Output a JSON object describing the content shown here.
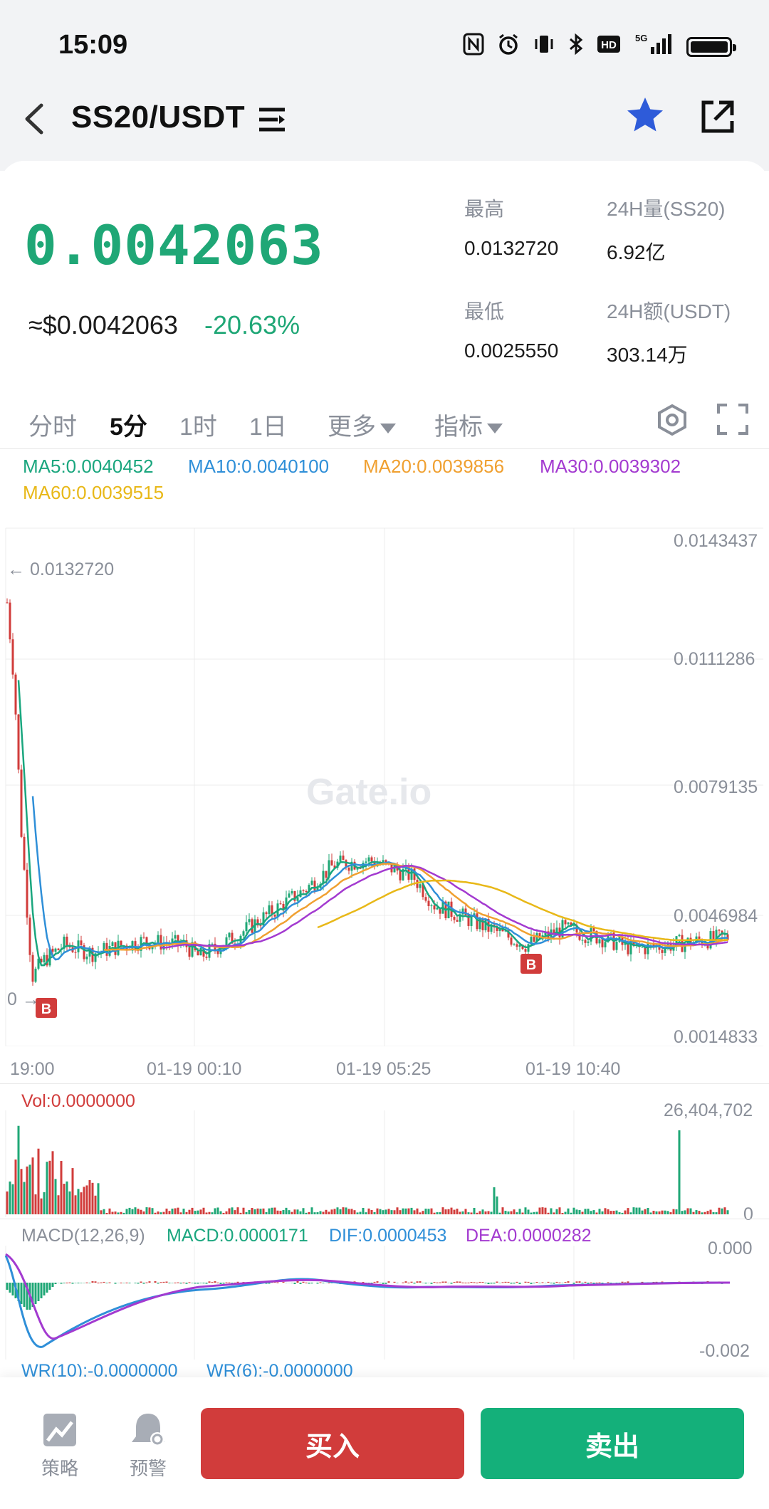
{
  "status_bar": {
    "time": "15:09",
    "icons": [
      "nfc-icon",
      "alarm-icon",
      "vibrate-icon",
      "bluetooth-icon",
      "hd-icon",
      "5g-signal-icon",
      "battery-icon"
    ],
    "hd": "HD",
    "net": "5G"
  },
  "header": {
    "pair": "SS20/USDT"
  },
  "price": {
    "last": "0.0042063",
    "usd": "≈$0.0042063",
    "change": "-20.63%"
  },
  "stats": {
    "high_label": "最高",
    "high_value": "0.0132720",
    "low_label": "最低",
    "low_value": "0.0025550",
    "vol_label": "24H量(SS20)",
    "vol_value": "6.92亿",
    "amt_label": "24H额(USDT)",
    "amt_value": "303.14万"
  },
  "tabs": {
    "items": [
      "分时",
      "5分",
      "1时",
      "1日",
      "更多",
      "指标"
    ],
    "active": "5分"
  },
  "ma": {
    "ma5": "MA5:0.0040452",
    "ma10": "MA10:0.0040100",
    "ma20": "MA20:0.0039856",
    "ma30": "MA30:0.0039302",
    "ma60": "MA60:0.0039515"
  },
  "colors": {
    "up": "#1fa776",
    "down": "#d13c3b",
    "ma5": "#1aa67e",
    "ma10": "#2f8fd8",
    "ma20": "#f0a030",
    "ma30": "#a33ad0",
    "ma60": "#e8b818"
  },
  "chart": {
    "y_labels": [
      "0.0143437",
      "0.0111286",
      "0.0079135",
      "0.0046984",
      "0.0014833"
    ],
    "high_marker": "← 0.0132720",
    "low_marker": "0 →",
    "x_labels": [
      "19:00",
      "01-19 00:10",
      "01-19 05:25",
      "01-19 10:40"
    ],
    "watermark": "Gate.io",
    "buy_marker": "B"
  },
  "volume": {
    "label": "Vol:0.0000000",
    "max": "26,404,702",
    "min": "0"
  },
  "macd": {
    "name": "MACD(12,26,9)",
    "macd": "MACD:0.0000171",
    "dif": "DIF:0.0000453",
    "dea": "DEA:0.0000282",
    "top": "0.000",
    "bottom": "-0.002"
  },
  "wr": {
    "label1": "WR(10):-0.0000000",
    "label2": "WR(6):-0.0000000"
  },
  "bottom": {
    "strategy": "策略",
    "alert": "预警",
    "buy": "买入",
    "sell": "卖出"
  },
  "chart_data": {
    "type": "line",
    "title": "SS20/USDT 5分",
    "x": [
      "19:00",
      "01-19 00:10",
      "01-19 05:25",
      "01-19 10:40"
    ],
    "ylim": [
      0.0014833,
      0.0143437
    ],
    "series": [
      {
        "name": "MA5",
        "last": 0.0040452
      },
      {
        "name": "MA10",
        "last": 0.00401
      },
      {
        "name": "MA20",
        "last": 0.0039856
      },
      {
        "name": "MA30",
        "last": 0.0039302
      },
      {
        "name": "MA60",
        "last": 0.0039515
      }
    ],
    "high": 0.013272,
    "low": 0.002555
  }
}
